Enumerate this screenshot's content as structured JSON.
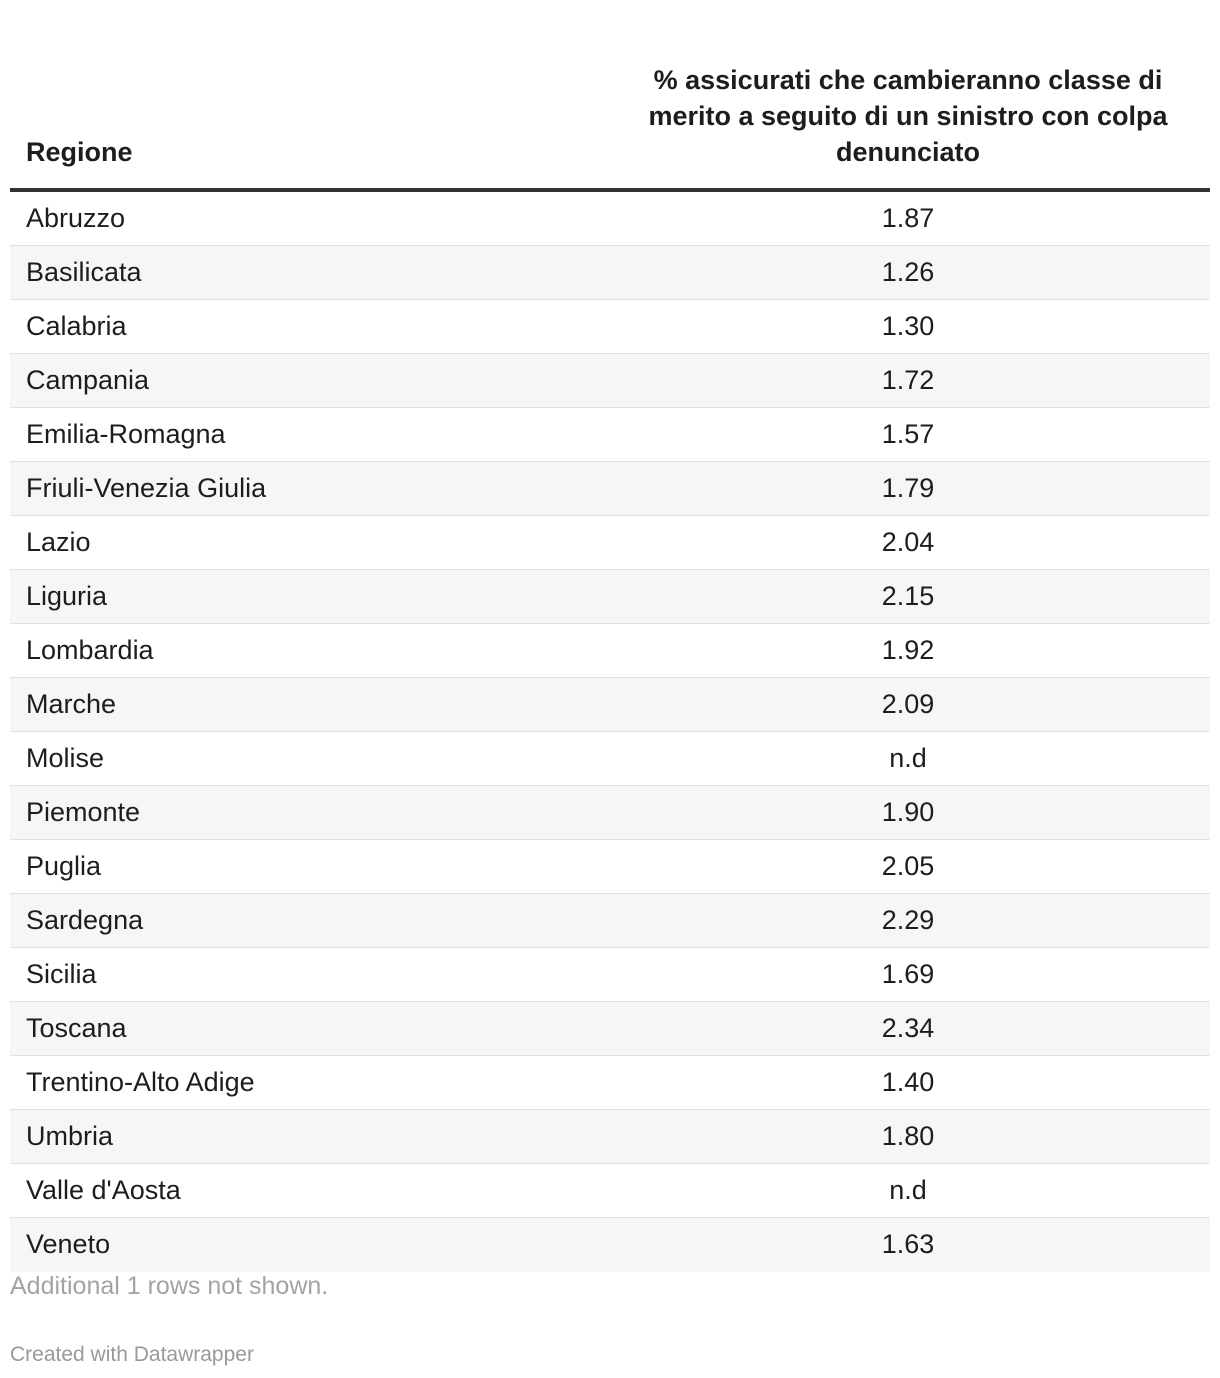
{
  "chart_data": {
    "type": "table",
    "columns": [
      "Regione",
      "% assicurati che cambieranno classe di merito a seguito di un sinistro con colpa denunciato"
    ],
    "rows": [
      {
        "region": "Abruzzo",
        "value": "1.87"
      },
      {
        "region": "Basilicata",
        "value": "1.26"
      },
      {
        "region": "Calabria",
        "value": "1.30"
      },
      {
        "region": "Campania",
        "value": "1.72"
      },
      {
        "region": "Emilia-Romagna",
        "value": "1.57"
      },
      {
        "region": "Friuli-Venezia Giulia",
        "value": "1.79"
      },
      {
        "region": "Lazio",
        "value": "2.04"
      },
      {
        "region": "Liguria",
        "value": "2.15"
      },
      {
        "region": "Lombardia",
        "value": "1.92"
      },
      {
        "region": "Marche",
        "value": "2.09"
      },
      {
        "region": "Molise",
        "value": "n.d"
      },
      {
        "region": "Piemonte",
        "value": "1.90"
      },
      {
        "region": "Puglia",
        "value": "2.05"
      },
      {
        "region": "Sardegna",
        "value": "2.29"
      },
      {
        "region": "Sicilia",
        "value": "1.69"
      },
      {
        "region": "Toscana",
        "value": "2.34"
      },
      {
        "region": "Trentino-Alto Adige",
        "value": "1.40"
      },
      {
        "region": "Umbria",
        "value": "1.80"
      },
      {
        "region": "Valle d'Aosta",
        "value": "n.d"
      },
      {
        "region": "Veneto",
        "value": "1.63"
      }
    ],
    "note": "Additional 1 rows not shown.",
    "credit": "Created with Datawrapper"
  }
}
